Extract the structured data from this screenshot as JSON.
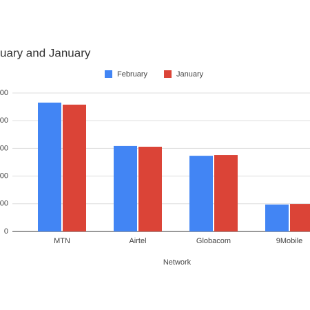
{
  "chart_data": {
    "type": "bar",
    "title": "uary and January",
    "x_label": "Network",
    "categories": [
      "MTN",
      "Airtel",
      "Globacom",
      "9Mobile"
    ],
    "series": [
      {
        "name": "February",
        "color": "#4285f4",
        "values": [
          69800000,
          46300000,
          41000000,
          14600000
        ]
      },
      {
        "name": "January",
        "color": "#db4437",
        "values": [
          68700000,
          45900000,
          41400000,
          14900000
        ]
      }
    ],
    "ylim": [
      0,
      75000000
    ],
    "yticks": [
      0,
      {
        "value": 15000000,
        "label": "00"
      },
      {
        "value": 30000000,
        "label": "00"
      },
      {
        "value": 45000000,
        "label": "00"
      },
      {
        "value": 60000000,
        "label": "00"
      },
      {
        "value": 75000000,
        "label": "00"
      }
    ],
    "grid": true,
    "legend": "top"
  }
}
